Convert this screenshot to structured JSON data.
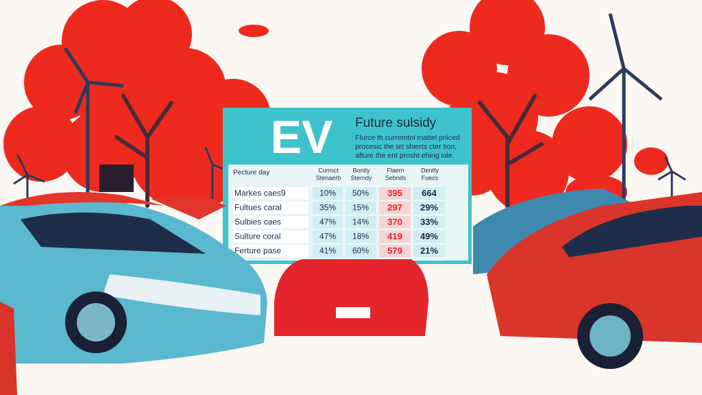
{
  "billboard": {
    "logo": "EV",
    "title": "Future sulsidy",
    "description": [
      "Flurce th curremtni mattel priiced",
      "procesic the tet shierts cter tion,",
      "afture the ent prosht ehing iole."
    ],
    "table": {
      "header": [
        [
          "Pecture day"
        ],
        [
          "Currnct",
          "Stenaerb"
        ],
        [
          "Bonity",
          "Sterndy"
        ],
        [
          "Flaern",
          "Sebnds"
        ],
        [
          "Dentty",
          "Fuecs"
        ]
      ],
      "rows": [
        [
          "Markes caes9",
          "10%",
          "50%",
          "395",
          "664"
        ],
        [
          "Fultues caral",
          "35%",
          "15%",
          "297",
          "29%"
        ],
        [
          "Sulbies caes",
          "47%",
          "14%",
          "370",
          "33%"
        ],
        [
          "Sulture coral",
          "47%",
          "18%",
          "419",
          "49%"
        ],
        [
          "Ferture pase",
          "41%",
          "60%",
          "579",
          "21%"
        ]
      ]
    }
  }
}
